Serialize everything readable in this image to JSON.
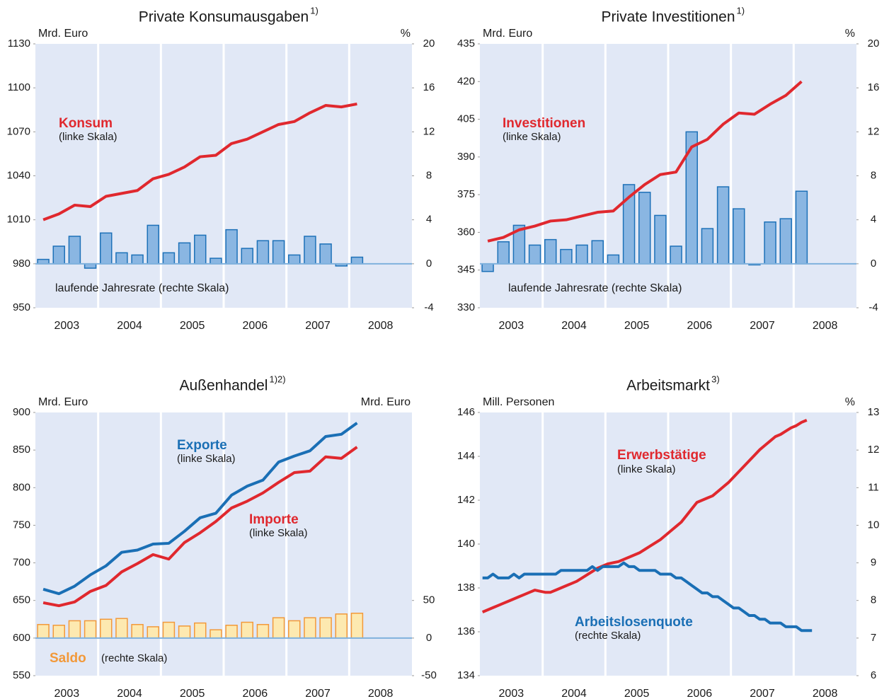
{
  "chart_data": [
    {
      "type": "combo",
      "title": "Private Konsumausgaben",
      "title_note": "1)",
      "ylabel": "Mrd. Euro",
      "y2label": "%",
      "categories": [
        "2003",
        null,
        null,
        null,
        "2004",
        null,
        null,
        null,
        "2005",
        null,
        null,
        null,
        "2006",
        null,
        null,
        null,
        "2007",
        null,
        null,
        null,
        "2008",
        null,
        null,
        null
      ],
      "ylim": [
        950,
        1130
      ],
      "yticks": [
        950,
        980,
        1010,
        1040,
        1070,
        1100,
        1130
      ],
      "y2lim": [
        -4,
        20
      ],
      "y2ticks": [
        -4,
        0,
        4,
        8,
        12,
        16,
        20
      ],
      "series": [
        {
          "name": "Konsum",
          "note": "(linke Skala)",
          "kind": "line",
          "color": "#e0282e",
          "values": [
            1010,
            1014,
            1020,
            1019,
            1026,
            1028,
            1030,
            1038,
            1041,
            1046,
            1053,
            1054,
            1062,
            1065,
            1070,
            1075,
            1077,
            1083,
            1088,
            1087,
            1089,
            null,
            null,
            null
          ]
        },
        {
          "name": "laufende Jahresrate (rechte Skala)",
          "kind": "bar",
          "axis": "y2",
          "color": "#8ab6e2",
          "edge": "#1d71b8",
          "values": [
            0.4,
            1.6,
            2.5,
            -0.4,
            2.8,
            1.0,
            0.8,
            3.5,
            1.0,
            1.9,
            2.6,
            0.5,
            3.1,
            1.4,
            2.1,
            2.1,
            0.8,
            2.5,
            1.8,
            -0.2,
            0.6,
            null,
            null,
            null
          ]
        }
      ]
    },
    {
      "type": "combo",
      "title": "Private Investitionen",
      "title_note": "1)",
      "ylabel": "Mrd. Euro",
      "y2label": "%",
      "categories": [
        "2003",
        null,
        null,
        null,
        "2004",
        null,
        null,
        null,
        "2005",
        null,
        null,
        null,
        "2006",
        null,
        null,
        null,
        "2007",
        null,
        null,
        null,
        "2008",
        null,
        null,
        null
      ],
      "ylim": [
        330,
        435
      ],
      "yticks": [
        330,
        345,
        360,
        375,
        390,
        405,
        420,
        435
      ],
      "y2lim": [
        -4,
        20
      ],
      "y2ticks": [
        -4,
        0,
        4,
        8,
        12,
        16,
        20
      ],
      "series": [
        {
          "name": "Investitionen",
          "note": "(linke Skala)",
          "kind": "line",
          "color": "#e0282e",
          "values": [
            356.5,
            358,
            361,
            362.5,
            364.5,
            365,
            366.5,
            368,
            368.5,
            374,
            379,
            383,
            384,
            394,
            397,
            403,
            407.5,
            407,
            411,
            414.5,
            420,
            null,
            null,
            null
          ]
        },
        {
          "name": "laufende Jahresrate (rechte Skala)",
          "kind": "bar",
          "axis": "y2",
          "color": "#8ab6e2",
          "edge": "#1d71b8",
          "values": [
            -0.7,
            2.0,
            3.5,
            1.7,
            2.2,
            1.3,
            1.7,
            2.1,
            0.8,
            7.2,
            6.5,
            4.4,
            1.6,
            12.0,
            3.2,
            7.0,
            5.0,
            -0.1,
            3.8,
            4.1,
            6.6,
            null,
            null,
            null
          ]
        }
      ]
    },
    {
      "type": "combo",
      "title": "Außenhandel",
      "title_note": "1)2)",
      "ylabel": "Mrd. Euro",
      "y2label": "Mrd. Euro",
      "categories": [
        "2003",
        null,
        null,
        null,
        "2004",
        null,
        null,
        null,
        "2005",
        null,
        null,
        null,
        "2006",
        null,
        null,
        null,
        "2007",
        null,
        null,
        null,
        "2008",
        null,
        null,
        null
      ],
      "ylim": [
        550,
        900
      ],
      "yticks": [
        550,
        600,
        650,
        700,
        750,
        800,
        850,
        900
      ],
      "y2lim": [
        -50,
        300
      ],
      "y2ticks": [
        -50,
        0,
        50
      ],
      "series": [
        {
          "name": "Exporte",
          "note": "(linke Skala)",
          "kind": "line",
          "color": "#1a6fb5",
          "values": [
            665,
            659,
            669,
            684,
            696,
            714,
            717,
            725,
            726,
            742,
            760,
            766,
            790,
            802,
            810,
            834,
            842,
            849,
            868,
            871,
            886,
            null,
            null,
            null
          ]
        },
        {
          "name": "Importe",
          "note": "(linke Skala)",
          "kind": "line",
          "color": "#e0282e",
          "values": [
            647,
            643,
            648,
            662,
            670,
            688,
            699,
            711,
            705,
            727,
            740,
            755,
            773,
            782,
            793,
            807,
            820,
            822,
            841,
            839,
            854,
            null,
            null,
            null
          ]
        },
        {
          "name": "Saldo",
          "note": "(rechte Skala)",
          "kind": "bar",
          "axis": "y2",
          "color": "#fde9b0",
          "edge": "#f2993a",
          "values": [
            18,
            17,
            23,
            23,
            25,
            26,
            18,
            15,
            21,
            16,
            20,
            11,
            17,
            21,
            18,
            27,
            23,
            27,
            27,
            32,
            33,
            null,
            null,
            null
          ]
        }
      ]
    },
    {
      "type": "line",
      "title": "Arbeitsmarkt",
      "title_note": "3)",
      "ylabel": "Mill. Personen",
      "y2label": "%",
      "categories": [
        "2003",
        null,
        null,
        null,
        null,
        null,
        null,
        null,
        null,
        null,
        null,
        null,
        "2004",
        null,
        null,
        null,
        null,
        null,
        null,
        null,
        null,
        null,
        null,
        null,
        "2005",
        null,
        null,
        null,
        null,
        null,
        null,
        null,
        null,
        null,
        null,
        null,
        "2006",
        null,
        null,
        null,
        null,
        null,
        null,
        null,
        null,
        null,
        null,
        null,
        "2007",
        null,
        null,
        null,
        null,
        null,
        null,
        null,
        null,
        null,
        null,
        null,
        "2008",
        null,
        null,
        null,
        null,
        null,
        null,
        null,
        null,
        null,
        null,
        null
      ],
      "ylim": [
        134,
        146
      ],
      "yticks": [
        134,
        136,
        138,
        140,
        142,
        144,
        146
      ],
      "y2lim": [
        6,
        13
      ],
      "y2ticks": [
        6,
        7,
        8,
        9,
        10,
        11,
        12,
        13
      ],
      "series": [
        {
          "name": "Erwerbstätige",
          "note": "(linke Skala)",
          "kind": "line",
          "color": "#e0282e",
          "values": [
            136.9,
            137.0,
            137.1,
            137.2,
            137.3,
            137.4,
            137.5,
            137.6,
            137.7,
            137.8,
            137.9,
            137.85,
            137.8,
            137.8,
            137.9,
            138.0,
            138.1,
            138.2,
            138.3,
            138.45,
            138.6,
            138.75,
            138.9,
            139.0,
            139.1,
            139.15,
            139.2,
            139.3,
            139.4,
            139.5,
            139.6,
            139.75,
            139.9,
            140.05,
            140.2,
            140.4,
            140.6,
            140.8,
            141.0,
            141.3,
            141.6,
            141.9,
            142.0,
            142.1,
            142.2,
            142.4,
            142.6,
            142.8,
            143.05,
            143.3,
            143.55,
            143.8,
            144.05,
            144.3,
            144.5,
            144.7,
            144.9,
            145.0,
            145.15,
            145.3,
            145.4,
            145.55,
            145.65,
            null,
            null,
            null,
            null,
            null,
            null,
            null,
            null,
            null
          ]
        },
        {
          "name": "Arbeitslosenquote",
          "note": "(rechte Skala)",
          "kind": "line",
          "axis": "y2",
          "color": "#1a6fb5",
          "values": [
            8.6,
            8.6,
            8.7,
            8.6,
            8.6,
            8.6,
            8.7,
            8.6,
            8.7,
            8.7,
            8.7,
            8.7,
            8.7,
            8.7,
            8.7,
            8.8,
            8.8,
            8.8,
            8.8,
            8.8,
            8.8,
            8.9,
            8.8,
            8.9,
            8.9,
            8.9,
            8.9,
            9.0,
            8.9,
            8.9,
            8.8,
            8.8,
            8.8,
            8.8,
            8.7,
            8.7,
            8.7,
            8.6,
            8.6,
            8.5,
            8.4,
            8.3,
            8.2,
            8.2,
            8.1,
            8.1,
            8.0,
            7.9,
            7.8,
            7.8,
            7.7,
            7.6,
            7.6,
            7.5,
            7.5,
            7.4,
            7.4,
            7.4,
            7.3,
            7.3,
            7.3,
            7.2,
            7.2,
            7.2,
            null,
            null,
            null,
            null,
            null,
            null,
            null,
            null
          ]
        }
      ]
    }
  ]
}
